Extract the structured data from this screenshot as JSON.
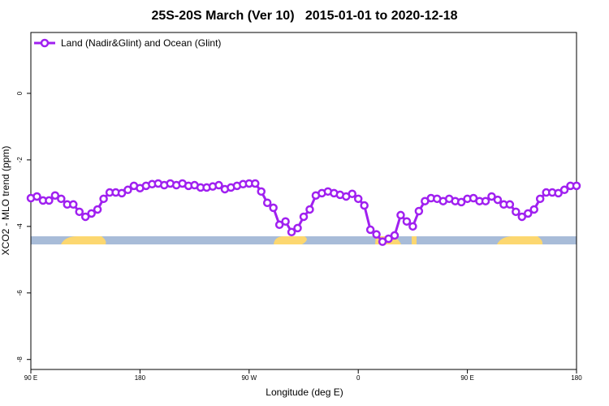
{
  "chart_data": {
    "type": "line",
    "title": "25S-20S March (Ver 10)   2015-01-01 to 2020-12-18",
    "x_label": "Longitude (deg E)",
    "y_label": "XCO2 - MLO trend (ppm)",
    "xlim": [
      90,
      540
    ],
    "ylim": [
      -8.3,
      1.83
    ],
    "xticks": [
      {
        "value": 90,
        "label": "90 E"
      },
      180,
      {
        "value": 270,
        "label": "90 W"
      },
      {
        "value": 360,
        "label": "0"
      },
      {
        "value": 450,
        "label": "90 E"
      },
      {
        "value": 540,
        "label": "180"
      }
    ],
    "yticks": [
      0,
      -2,
      -4,
      -6,
      -8
    ],
    "legend": "top-left",
    "x": [
      90,
      95,
      100,
      105,
      110,
      115,
      120,
      125,
      130,
      135,
      140,
      145,
      150,
      155,
      160,
      165,
      170,
      175,
      180,
      185,
      190,
      195,
      200,
      205,
      210,
      215,
      220,
      225,
      230,
      235,
      240,
      245,
      250,
      255,
      260,
      265,
      270,
      275,
      280,
      285,
      290,
      295,
      300,
      305,
      310,
      315,
      320,
      325,
      330,
      335,
      340,
      345,
      350,
      355,
      360,
      365,
      370,
      375,
      380,
      385,
      390,
      395,
      400,
      405,
      410,
      415,
      420,
      425,
      430,
      435,
      440,
      445,
      450,
      455,
      460,
      465,
      470,
      475,
      480,
      485,
      490,
      495,
      500,
      505,
      510,
      515,
      520,
      525,
      530,
      535,
      540
    ],
    "series": [
      {
        "name": "Land (Nadir&Glint) and Ocean (Glint)",
        "color": "#a020f0",
        "values": [
          -3.15,
          -3.1,
          -3.22,
          -3.22,
          -3.07,
          -3.17,
          -3.34,
          -3.34,
          -3.56,
          -3.71,
          -3.61,
          -3.49,
          -3.17,
          -2.98,
          -2.98,
          -3.0,
          -2.9,
          -2.78,
          -2.85,
          -2.78,
          -2.73,
          -2.71,
          -2.76,
          -2.71,
          -2.76,
          -2.71,
          -2.78,
          -2.76,
          -2.83,
          -2.83,
          -2.8,
          -2.76,
          -2.88,
          -2.83,
          -2.78,
          -2.73,
          -2.71,
          -2.71,
          -2.95,
          -3.29,
          -3.44,
          -3.95,
          -3.85,
          -4.17,
          -4.05,
          -3.71,
          -3.49,
          -3.07,
          -3.0,
          -2.95,
          -3.0,
          -3.05,
          -3.1,
          -3.02,
          -3.17,
          -3.37,
          -4.1,
          -4.24,
          -4.46,
          -4.37,
          -4.27,
          -3.66,
          -3.85,
          -4.0,
          -3.54,
          -3.24,
          -3.15,
          -3.17,
          -3.24,
          -3.17,
          -3.24,
          -3.27,
          -3.17,
          -3.15,
          -3.24,
          -3.24,
          -3.1,
          -3.2,
          -3.34,
          -3.34,
          -3.56,
          -3.71,
          -3.61,
          -3.49,
          -3.17,
          -2.98,
          -2.98,
          -3.0,
          -2.9,
          -2.78,
          -2.78
        ]
      }
    ]
  }
}
